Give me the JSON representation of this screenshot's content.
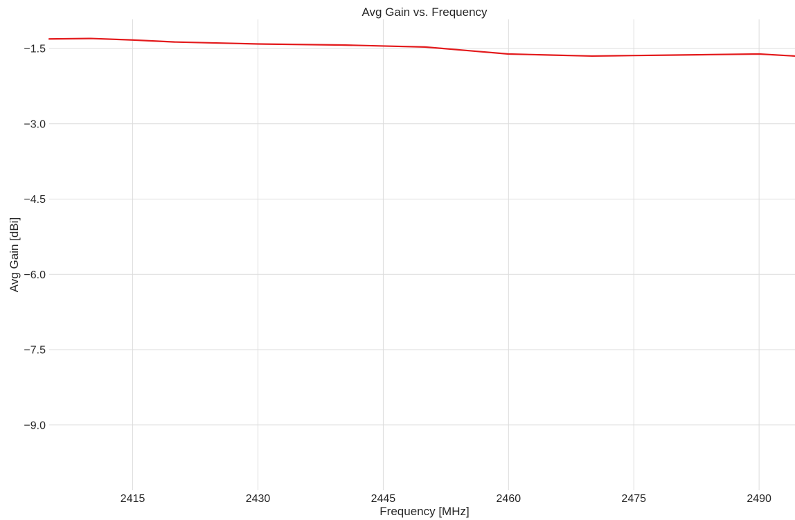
{
  "chart_data": {
    "type": "line",
    "title": "Avg Gain vs. Frequency",
    "xlabel": "Frequency [MHz]",
    "ylabel": "Avg Gain [dBi]",
    "xlim": [
      2405,
      2494.3
    ],
    "ylim": [
      -10.3,
      -0.92
    ],
    "xticks": [
      2415,
      2430,
      2445,
      2460,
      2475,
      2490
    ],
    "xtick_labels": [
      "2415",
      "2430",
      "2445",
      "2460",
      "2475",
      "2490"
    ],
    "yticks": [
      -1.5,
      -3.0,
      -4.5,
      -6.0,
      -7.5,
      -9.0
    ],
    "ytick_labels": [
      "−1.5",
      "−3.0",
      "−4.5",
      "−6.0",
      "−7.5",
      "−9.0"
    ],
    "grid": true,
    "series": [
      {
        "color": "#e31a1c",
        "x": [
          2405,
          2410,
          2415,
          2420,
          2425,
          2430,
          2435,
          2440,
          2445,
          2450,
          2455,
          2460,
          2465,
          2470,
          2475,
          2480,
          2485,
          2490,
          2494.3
        ],
        "y": [
          -1.31,
          -1.3,
          -1.33,
          -1.37,
          -1.39,
          -1.41,
          -1.42,
          -1.43,
          -1.45,
          -1.47,
          -1.54,
          -1.61,
          -1.63,
          -1.65,
          -1.64,
          -1.63,
          -1.62,
          -1.61,
          -1.65
        ]
      }
    ]
  }
}
